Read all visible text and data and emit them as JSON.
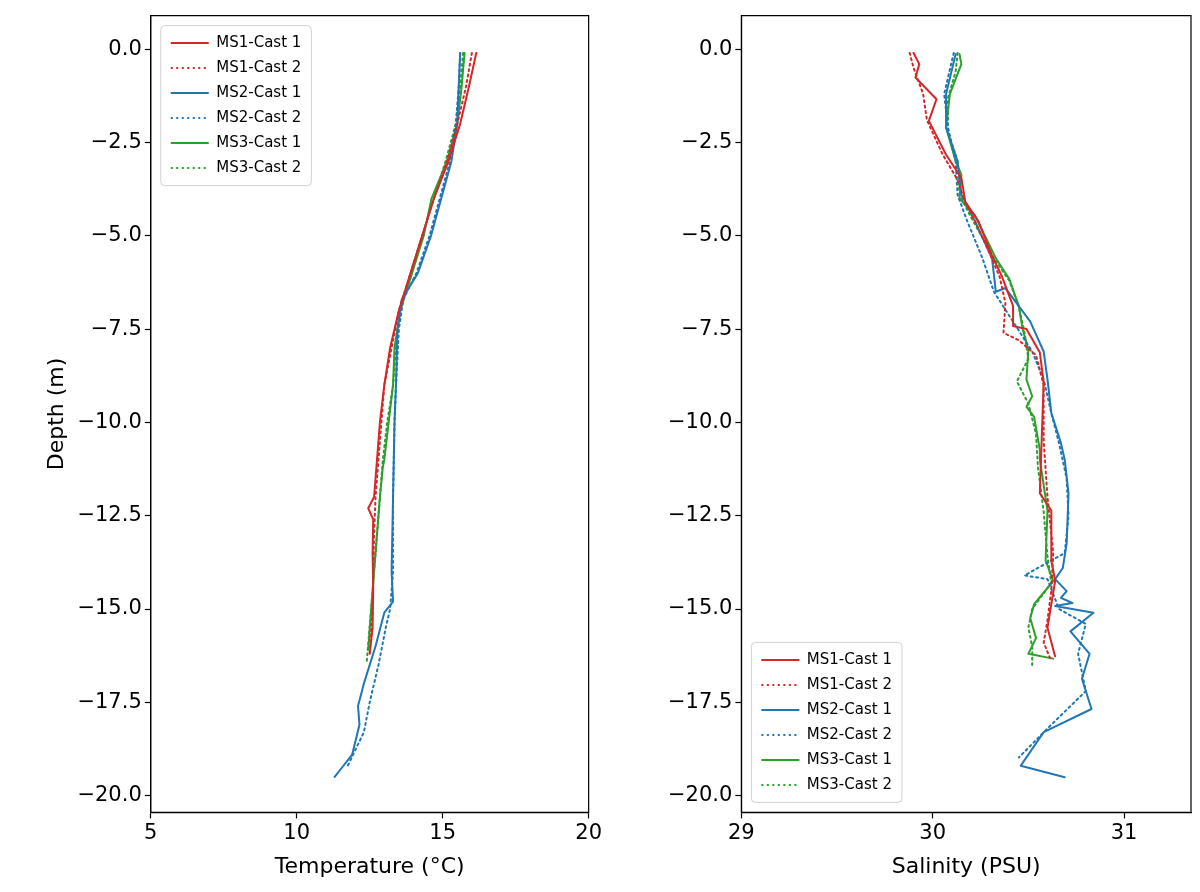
{
  "chart_data": [
    {
      "type": "line",
      "xlabel": "Temperature (°C)",
      "ylabel": "Depth (m)",
      "xlim": [
        5,
        20
      ],
      "xticks": [
        5,
        10,
        15,
        20
      ],
      "ylim": [
        -20.45,
        0.9
      ],
      "yticks": [
        {
          "value": 0,
          "label": "0.0"
        },
        {
          "value": -2.5,
          "label": "−2.5"
        },
        {
          "value": -5,
          "label": "−5.0"
        },
        {
          "value": -7.5,
          "label": "−7.5"
        },
        {
          "value": -10,
          "label": "−10.0"
        },
        {
          "value": -12.5,
          "label": "−12.5"
        },
        {
          "value": -15,
          "label": "−15.0"
        },
        {
          "value": -17.5,
          "label": "−17.5"
        },
        {
          "value": -20,
          "label": "−20.0"
        }
      ],
      "grid": false,
      "legend": "top left",
      "marker": "none",
      "series": [
        {
          "name": "MS1-Cast 1",
          "color": "#d62728",
          "line_style": "solid",
          "x": [
            16.15,
            15.9,
            15.6,
            15.2,
            14.7,
            14.3,
            13.9,
            13.5,
            13.2,
            13.0,
            12.85,
            12.75,
            12.65,
            12.45,
            12.62,
            12.6,
            12.62,
            12.6,
            12.5
          ],
          "values": [
            -0.1,
            -1,
            -2,
            -3,
            -4,
            -5,
            -6,
            -7,
            -8,
            -9,
            -10,
            -11,
            -12,
            -12.3,
            -12.6,
            -13.5,
            -14.5,
            -15.5,
            -16.2
          ]
        },
        {
          "name": "MS1-Cast 2",
          "color": "#d62728",
          "line_style": "dotted",
          "x": [
            16.0,
            15.8,
            15.5,
            15.15,
            14.7,
            14.3,
            13.9,
            13.5,
            13.25,
            13.0,
            12.9,
            12.8,
            12.7,
            12.65,
            12.62,
            12.6,
            12.5
          ],
          "values": [
            -0.1,
            -1,
            -2,
            -3,
            -4,
            -5,
            -6,
            -7,
            -8,
            -9,
            -10,
            -11,
            -12,
            -13,
            -14,
            -15,
            -16.2
          ]
        },
        {
          "name": "MS2-Cast 1",
          "color": "#1f77b4",
          "line_style": "solid",
          "x": [
            15.6,
            15.55,
            15.5,
            15.3,
            14.95,
            14.6,
            14.15,
            13.6,
            13.45,
            13.4,
            13.35,
            13.3,
            13.25,
            13.3,
            13.0,
            12.7,
            12.3,
            12.1,
            12.15,
            11.9,
            11.6,
            11.3
          ],
          "values": [
            -0.1,
            -1,
            -2,
            -3,
            -4,
            -5,
            -6,
            -6.7,
            -7.5,
            -9,
            -10,
            -12,
            -14,
            -14.8,
            -15.1,
            -16,
            -17,
            -17.6,
            -18.1,
            -18.9,
            -19.2,
            -19.5
          ]
        },
        {
          "name": "MS2-Cast 2",
          "color": "#1f77b4",
          "line_style": "dotted",
          "x": [
            15.6,
            15.55,
            15.45,
            15.25,
            14.9,
            14.55,
            14.1,
            13.65,
            13.5,
            13.4,
            13.35,
            13.3,
            13.3,
            13.2,
            13.05,
            12.8,
            12.5,
            12.3,
            11.75
          ],
          "values": [
            -0.1,
            -1,
            -2,
            -3,
            -4,
            -5,
            -6,
            -6.7,
            -7.5,
            -9,
            -10,
            -12,
            -14,
            -15,
            -15.5,
            -16.5,
            -17.5,
            -18.3,
            -19.2
          ]
        },
        {
          "name": "MS3-Cast 1",
          "color": "#2ca02c",
          "line_style": "solid",
          "x": [
            15.75,
            15.65,
            15.5,
            15.15,
            14.62,
            14.35,
            13.95,
            13.55,
            13.35,
            13.3,
            13.15,
            13.0,
            12.95,
            12.85,
            12.75,
            12.65,
            12.55,
            12.45
          ],
          "values": [
            -0.1,
            -1,
            -2,
            -3,
            -4,
            -5,
            -6,
            -7,
            -8,
            -9,
            -10,
            -11,
            -11.2,
            -12,
            -13,
            -14,
            -15,
            -16.1
          ]
        },
        {
          "name": "MS3-Cast 2",
          "color": "#2ca02c",
          "line_style": "dotted",
          "x": [
            15.7,
            15.6,
            15.45,
            15.1,
            14.7,
            14.3,
            13.9,
            13.55,
            13.4,
            13.3,
            13.1,
            12.95,
            12.85,
            12.75,
            12.65,
            12.55,
            12.4
          ],
          "values": [
            -0.1,
            -1,
            -2,
            -3,
            -4,
            -5,
            -6,
            -7,
            -8,
            -9,
            -10,
            -11,
            -12,
            -13,
            -14,
            -15,
            -16.4
          ]
        }
      ]
    },
    {
      "type": "line",
      "xlabel": "Salinity (PSU)",
      "xlim": [
        29,
        31.35
      ],
      "xticks": [
        29,
        30,
        31
      ],
      "ylim": [
        -20.45,
        0.9
      ],
      "yticks": [
        {
          "value": 0,
          "label": "0.0"
        },
        {
          "value": -2.5,
          "label": "−2.5"
        },
        {
          "value": -5,
          "label": "−5.0"
        },
        {
          "value": -7.5,
          "label": "−7.5"
        },
        {
          "value": -10,
          "label": "−10.0"
        },
        {
          "value": -12.5,
          "label": "−12.5"
        },
        {
          "value": -15,
          "label": "−15.0"
        },
        {
          "value": -17.5,
          "label": "−17.5"
        },
        {
          "value": -20,
          "label": "−20.0"
        }
      ],
      "grid": false,
      "legend": "bottom left",
      "marker": "none",
      "series": [
        {
          "name": "MS1-Cast 1",
          "color": "#d62728",
          "line_style": "solid",
          "x": [
            29.9,
            29.93,
            29.91,
            30.02,
            29.98,
            30.07,
            30.15,
            30.17,
            30.24,
            30.31,
            30.36,
            30.42,
            30.42,
            30.49,
            30.56,
            30.58,
            30.56,
            30.62,
            30.62,
            30.64,
            30.62,
            30.6,
            30.64
          ],
          "values": [
            -0.1,
            -0.4,
            -0.76,
            -1.34,
            -1.92,
            -2.83,
            -3.45,
            -4.08,
            -4.62,
            -5.53,
            -6.07,
            -6.88,
            -7.42,
            -7.5,
            -8.13,
            -8.93,
            -11.9,
            -12.36,
            -13.7,
            -14.25,
            -14.87,
            -15.5,
            -16.27
          ]
        },
        {
          "name": "MS1-Cast 2",
          "color": "#d62728",
          "line_style": "dotted",
          "x": [
            29.88,
            29.9,
            29.95,
            29.97,
            30.05,
            30.13,
            30.17,
            30.23,
            30.3,
            30.35,
            30.38,
            30.37,
            30.45,
            30.54,
            30.58,
            30.58,
            30.6,
            30.63,
            30.62,
            30.6,
            30.58,
            30.62
          ],
          "values": [
            -0.1,
            -0.5,
            -1.2,
            -1.9,
            -2.8,
            -3.5,
            -4.1,
            -4.7,
            -5.5,
            -6.1,
            -6.8,
            -7.6,
            -7.8,
            -8.2,
            -9.0,
            -10.5,
            -12.0,
            -13.5,
            -14.5,
            -15.3,
            -15.9,
            -16.4
          ]
        },
        {
          "name": "MS2-Cast 1",
          "color": "#1f77b4",
          "line_style": "solid",
          "x": [
            30.12,
            30.07,
            30.07,
            30.13,
            30.15,
            30.22,
            30.31,
            30.33,
            30.38,
            30.51,
            30.58,
            30.6,
            30.62,
            30.67,
            30.69,
            30.71,
            30.7,
            30.68,
            30.64,
            30.7,
            30.67,
            30.73,
            30.64,
            30.84,
            30.72,
            30.82,
            30.78,
            30.83,
            30.58,
            30.46,
            30.69
          ],
          "values": [
            -0.13,
            -1.2,
            -2.1,
            -3.0,
            -3.9,
            -4.6,
            -5.6,
            -6.5,
            -6.4,
            -7.3,
            -8.1,
            -8.85,
            -9.75,
            -10.55,
            -11.0,
            -11.9,
            -13.25,
            -13.9,
            -14.2,
            -14.52,
            -14.7,
            -14.84,
            -14.92,
            -15.1,
            -15.6,
            -16.2,
            -16.87,
            -17.68,
            -18.3,
            -19.2,
            -19.51
          ]
        },
        {
          "name": "MS2-Cast 2",
          "color": "#1f77b4",
          "line_style": "dotted",
          "x": [
            30.11,
            30.06,
            30.08,
            30.12,
            30.13,
            30.18,
            30.26,
            30.32,
            30.42,
            30.52,
            30.58,
            30.62,
            30.66,
            30.7,
            30.71,
            30.69,
            30.48,
            30.6,
            30.66,
            30.8,
            30.76,
            30.8,
            30.6,
            30.45
          ],
          "values": [
            -0.1,
            -1.2,
            -2.1,
            -3.0,
            -3.9,
            -4.6,
            -5.6,
            -6.5,
            -7.3,
            -8.1,
            -8.85,
            -9.75,
            -10.55,
            -11.5,
            -12.5,
            -13.5,
            -14.1,
            -14.2,
            -15.0,
            -15.4,
            -16.2,
            -17.2,
            -18.2,
            -18.98
          ]
        },
        {
          "name": "MS3-Cast 1",
          "color": "#2ca02c",
          "line_style": "solid",
          "x": [
            30.14,
            30.15,
            30.09,
            30.07,
            30.12,
            30.15,
            30.14,
            30.22,
            30.33,
            30.4,
            30.45,
            30.47,
            30.5,
            30.49,
            30.52,
            30.49,
            30.53,
            30.56,
            30.56,
            30.6,
            30.59,
            30.63,
            30.53,
            30.51,
            30.54,
            30.5,
            30.63
          ],
          "values": [
            -0.13,
            -0.4,
            -1.2,
            -2.1,
            -3.0,
            -3.37,
            -4.0,
            -4.45,
            -5.6,
            -6.15,
            -6.88,
            -7.5,
            -8.05,
            -8.85,
            -9.3,
            -9.58,
            -9.85,
            -10.74,
            -11.0,
            -12.36,
            -13.7,
            -14.25,
            -14.87,
            -15.25,
            -15.78,
            -16.2,
            -16.33
          ]
        },
        {
          "name": "MS3-Cast 2",
          "color": "#2ca02c",
          "line_style": "dotted",
          "x": [
            30.13,
            30.12,
            30.08,
            30.08,
            30.13,
            30.14,
            30.2,
            30.32,
            30.4,
            30.45,
            30.48,
            30.5,
            30.44,
            30.5,
            30.54,
            30.55,
            30.58,
            30.6,
            30.62,
            30.52,
            30.5,
            30.52,
            30.52
          ],
          "values": [
            -0.1,
            -0.6,
            -1.3,
            -2.2,
            -3.0,
            -3.9,
            -4.5,
            -5.6,
            -6.2,
            -6.9,
            -7.6,
            -8.3,
            -8.9,
            -9.5,
            -10.3,
            -11.2,
            -12.4,
            -13.6,
            -14.3,
            -15.0,
            -15.5,
            -16.0,
            -16.5
          ]
        }
      ]
    }
  ]
}
